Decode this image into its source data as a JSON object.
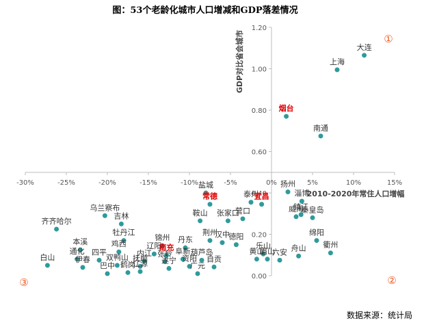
{
  "chart_data": {
    "type": "scatter",
    "title": "图：53个老龄化城市人口增减和GDP落差情况",
    "xlabel": "2010-2020年常住人口增幅",
    "ylabel": "GDP对比省会城市",
    "xlim": [
      -0.3,
      0.15
    ],
    "ylim": [
      0.0,
      1.2
    ],
    "x_ticks": [
      "-30%",
      "-25%",
      "-20%",
      "-15%",
      "-10%",
      "-5%",
      "0%",
      "5%",
      "10%",
      "15%"
    ],
    "y_ticks": [
      "0.00",
      "0.20",
      "0.40",
      "0.60",
      "0.80",
      "1.00",
      "1.20"
    ],
    "grid": false,
    "point_color": "#2f9a9c",
    "highlight_color": "#e00000",
    "quadrant_labels": [
      "①",
      "②",
      "③"
    ],
    "source": "数据来源：统计局",
    "points": [
      {
        "name": "大连",
        "x": 0.113,
        "y": 1.065,
        "highlight": false
      },
      {
        "name": "上海",
        "x": 0.08,
        "y": 0.995,
        "highlight": false
      },
      {
        "name": "烟台",
        "x": 0.018,
        "y": 0.77,
        "highlight": true
      },
      {
        "name": "南通",
        "x": 0.06,
        "y": 0.675,
        "highlight": false
      },
      {
        "name": "盐城",
        "x": -0.08,
        "y": 0.4,
        "highlight": false
      },
      {
        "name": "扬州",
        "x": 0.02,
        "y": 0.405,
        "highlight": false
      },
      {
        "name": "泰州",
        "x": -0.025,
        "y": 0.355,
        "highlight": false
      },
      {
        "name": "淄博",
        "x": 0.037,
        "y": 0.36,
        "highlight": false
      },
      {
        "name": "常德",
        "x": -0.075,
        "y": 0.345,
        "highlight": true
      },
      {
        "name": "宜昌",
        "x": -0.012,
        "y": 0.345,
        "highlight": true
      },
      {
        "name": "鞍山",
        "x": -0.087,
        "y": 0.265,
        "highlight": false
      },
      {
        "name": "张家口",
        "x": -0.053,
        "y": 0.265,
        "highlight": false
      },
      {
        "name": "威海",
        "x": 0.03,
        "y": 0.285,
        "highlight": false
      },
      {
        "name": "秦皇岛",
        "x": 0.05,
        "y": 0.28,
        "highlight": false
      },
      {
        "name": "镇江",
        "x": 0.036,
        "y": 0.295,
        "highlight": false
      },
      {
        "name": "乌兰察布",
        "x": -0.203,
        "y": 0.29,
        "highlight": false
      },
      {
        "name": "吉林",
        "x": -0.183,
        "y": 0.25,
        "highlight": false
      },
      {
        "name": "齐齐哈尔",
        "x": -0.262,
        "y": 0.225,
        "highlight": false
      },
      {
        "name": "营口",
        "x": -0.035,
        "y": 0.275,
        "highlight": false
      },
      {
        "name": "牡丹江",
        "x": -0.18,
        "y": 0.17,
        "highlight": false
      },
      {
        "name": "荆州",
        "x": -0.075,
        "y": 0.17,
        "highlight": false
      },
      {
        "name": "汉中",
        "x": -0.06,
        "y": 0.16,
        "highlight": false
      },
      {
        "name": "德阳",
        "x": -0.043,
        "y": 0.15,
        "highlight": false
      },
      {
        "name": "绵阳",
        "x": 0.055,
        "y": 0.17,
        "highlight": false
      },
      {
        "name": "锦州",
        "x": -0.133,
        "y": 0.145,
        "highlight": false
      },
      {
        "name": "丹东",
        "x": -0.105,
        "y": 0.135,
        "highlight": false
      },
      {
        "name": "本溪",
        "x": -0.233,
        "y": 0.125,
        "highlight": false
      },
      {
        "name": "鸡西",
        "x": -0.186,
        "y": 0.115,
        "highlight": false
      },
      {
        "name": "辽阳",
        "x": -0.143,
        "y": 0.105,
        "highlight": false
      },
      {
        "name": "南充",
        "x": -0.128,
        "y": 0.098,
        "highlight": true
      },
      {
        "name": "乐山",
        "x": -0.01,
        "y": 0.105,
        "highlight": false
      },
      {
        "name": "衢州",
        "x": 0.072,
        "y": 0.11,
        "highlight": false
      },
      {
        "name": "通化",
        "x": -0.237,
        "y": 0.08,
        "highlight": false
      },
      {
        "name": "四平",
        "x": -0.21,
        "y": 0.075,
        "highlight": false
      },
      {
        "name": "内江",
        "x": -0.155,
        "y": 0.07,
        "highlight": false
      },
      {
        "name": "张岭",
        "x": -0.13,
        "y": 0.068,
        "highlight": false
      },
      {
        "name": "阜新",
        "x": -0.108,
        "y": 0.08,
        "highlight": false
      },
      {
        "name": "葫芦岛",
        "x": -0.085,
        "y": 0.075,
        "highlight": false
      },
      {
        "name": "黄山",
        "x": -0.018,
        "y": 0.08,
        "highlight": false
      },
      {
        "name": "眉山",
        "x": -0.005,
        "y": 0.08,
        "highlight": false
      },
      {
        "name": "六安",
        "x": 0.01,
        "y": 0.075,
        "highlight": false
      },
      {
        "name": "舟山",
        "x": 0.033,
        "y": 0.095,
        "highlight": false
      },
      {
        "name": "双鸭山",
        "x": -0.188,
        "y": 0.05,
        "highlight": false
      },
      {
        "name": "抚顺",
        "x": -0.16,
        "y": 0.045,
        "highlight": false
      },
      {
        "name": "白山",
        "x": -0.273,
        "y": 0.05,
        "highlight": false
      },
      {
        "name": "伊春",
        "x": -0.23,
        "y": 0.04,
        "highlight": false
      },
      {
        "name": "资阳",
        "x": -0.1,
        "y": 0.045,
        "highlight": false
      },
      {
        "name": "自贡",
        "x": -0.07,
        "y": 0.042,
        "highlight": false
      },
      {
        "name": "遂宁",
        "x": -0.125,
        "y": 0.035,
        "highlight": false
      },
      {
        "name": "辽源",
        "x": -0.16,
        "y": 0.02,
        "highlight": false
      },
      {
        "name": "鹤岗",
        "x": -0.175,
        "y": 0.015,
        "highlight": false
      },
      {
        "name": "巴中",
        "x": -0.2,
        "y": 0.01,
        "highlight": false
      },
      {
        "name": "广元",
        "x": -0.09,
        "y": 0.01,
        "highlight": false
      }
    ]
  }
}
